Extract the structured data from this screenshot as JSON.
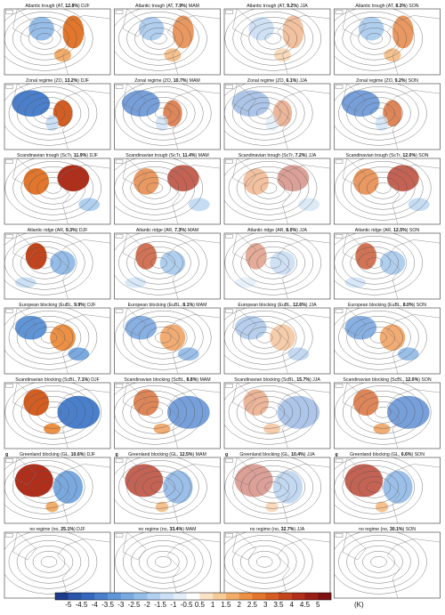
{
  "figure": {
    "rows": [
      {
        "prefix": "Atlantic trough (AT, ",
        "panels": [
          {
            "pct": "12.8%",
            "end": ") DJF"
          },
          {
            "pct": "7.9%",
            "end": ") MAM"
          },
          {
            "pct": "9.2%",
            "end": ") JJA"
          },
          {
            "pct": "8.3%",
            "end": ") SON"
          }
        ]
      },
      {
        "prefix": "Zonal regime (ZO, ",
        "panels": [
          {
            "pct": "13.2%",
            "end": ") DJF"
          },
          {
            "pct": "10.7%",
            "end": ") MAM"
          },
          {
            "pct": "6.1%",
            "end": ") JJA"
          },
          {
            "pct": "9.2%",
            "end": ") SON"
          }
        ]
      },
      {
        "prefix": "Scandinavian trough (ScTr, ",
        "panels": [
          {
            "pct": "11.9%",
            "end": ") DJF"
          },
          {
            "pct": "11.4%",
            "end": ") MAM"
          },
          {
            "pct": "7.2%",
            "end": ") JJA"
          },
          {
            "pct": "12.0%",
            "end": ") SON"
          }
        ]
      },
      {
        "prefix": "Atlantic ridge (AR, ",
        "panels": [
          {
            "pct": "9.3%",
            "end": ") DJF"
          },
          {
            "pct": "7.3%",
            "end": ") MAM"
          },
          {
            "pct": "8.0%",
            "end": ") JJA"
          },
          {
            "pct": "12.5%",
            "end": ") SON"
          }
        ]
      },
      {
        "prefix": "European blocking (EuBL, ",
        "panels": [
          {
            "pct": "9.9%",
            "end": ") DJF"
          },
          {
            "pct": "8.1%",
            "end": ") MAM"
          },
          {
            "pct": "12.6%",
            "end": ") JJA"
          },
          {
            "pct": "8.0%",
            "end": ") SON"
          }
        ]
      },
      {
        "prefix": "Scandinavian blocking (ScBL, ",
        "panels": [
          {
            "pct": "7.1%",
            "end": ") DJF"
          },
          {
            "pct": "8.8%",
            "end": ") MAM"
          },
          {
            "pct": "15.7%",
            "end": ") JJA"
          },
          {
            "pct": "12.0%",
            "end": ") SON"
          }
        ]
      },
      {
        "prefix": "Greenland blocking (GL, ",
        "mark": "g",
        "panels": [
          {
            "pct": "10.6%",
            "end": ") DJF"
          },
          {
            "pct": "12.5%",
            "end": ") MAM"
          },
          {
            "pct": "10.4%",
            "end": ") JJA"
          },
          {
            "pct": "6.6%",
            "end": ") SON"
          }
        ]
      },
      {
        "prefix": "no regime (no, ",
        "panels": [
          {
            "pct": "25.1%",
            "end": ") DJF"
          },
          {
            "pct": "33.4%",
            "end": ") MAM"
          },
          {
            "pct": "32.7%",
            "end": ") JJA"
          },
          {
            "pct": "30.1%",
            "end": ") SON"
          }
        ]
      }
    ],
    "colorbar": {
      "ticks": [
        -5,
        -4.5,
        -4,
        -3.5,
        -3,
        -2.5,
        -2,
        -1.5,
        -1,
        -0.5,
        0.5,
        1,
        1.5,
        2,
        2.5,
        3,
        3.5,
        4,
        4.5,
        5
      ],
      "colors": [
        "#1f3c8c",
        "#2a55a8",
        "#3467bd",
        "#4a7fcc",
        "#6095d8",
        "#7aa9e0",
        "#96bde8",
        "#b1d0ef",
        "#cbe0f5",
        "#e3eef9",
        "#ffffff",
        "#fbe3c6",
        "#f7cb97",
        "#f2ad6a",
        "#ec9044",
        "#e2762c",
        "#d45d21",
        "#c3441c",
        "#b02e1a",
        "#981d17",
        "#7e1012"
      ],
      "unit": "(K)"
    }
  }
}
